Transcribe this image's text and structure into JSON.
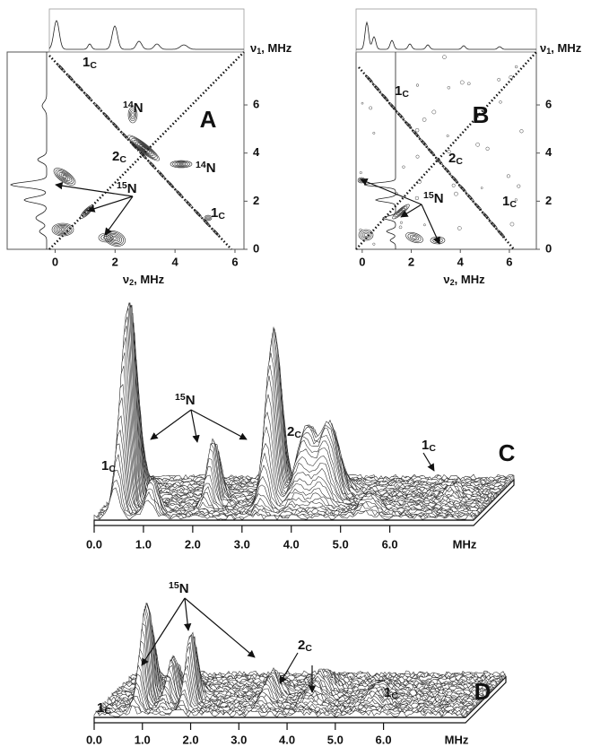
{
  "chart_data": [
    {
      "type": "contour",
      "panel": "A",
      "xlabel": {
        "symbol": "ν",
        "sub": "2",
        "unit": ", MHz"
      },
      "ylabel": {
        "symbol": "ν",
        "sub": "1",
        "unit": ", MHz"
      },
      "xlim": [
        -1.6,
        6.3
      ],
      "ylim": [
        0,
        8.2
      ],
      "xticks": [
        0,
        2,
        4,
        6
      ],
      "yticks": [
        0,
        2,
        4,
        6
      ],
      "annotations": [
        {
          "main": "1",
          "sub": "C"
        },
        {
          "sup": "14",
          "main": "N"
        },
        {
          "main": "2",
          "sub": "C"
        },
        {
          "sup": "14",
          "main": "N"
        },
        {
          "sup": "15",
          "main": "N"
        },
        {
          "main": "1",
          "sub": "C"
        }
      ]
    },
    {
      "type": "contour",
      "panel": "B",
      "xlabel": {
        "symbol": "ν",
        "sub": "2",
        "unit": ", MHz"
      },
      "ylabel": {
        "symbol": "ν",
        "sub": "1",
        "unit": ", MHz"
      },
      "xlim": [
        -0.25,
        7.1
      ],
      "ylim": [
        0,
        8.2
      ],
      "xticks": [
        0,
        2,
        4,
        6
      ],
      "yticks": [
        0,
        2,
        4,
        6
      ],
      "annotations": [
        {
          "main": "1",
          "sub": "C"
        },
        {
          "main": "2",
          "sub": "C"
        },
        {
          "sup": "15",
          "main": "N"
        },
        {
          "main": "1",
          "sub": "C"
        }
      ]
    },
    {
      "type": "surface",
      "panel": "C",
      "xlabel": "MHz",
      "xlim": [
        0,
        7.7
      ],
      "xticks": [
        {
          "value": 0,
          "label": "0.0"
        },
        {
          "value": 1,
          "label": "1.0"
        },
        {
          "value": 2,
          "label": "2.0"
        },
        {
          "value": 3,
          "label": "3.0"
        },
        {
          "value": 4,
          "label": "4.0"
        },
        {
          "value": 5,
          "label": "5.0"
        },
        {
          "value": 6,
          "label": "6.0"
        }
      ],
      "annotations": [
        {
          "sup": "15",
          "main": "N"
        },
        {
          "main": "2",
          "sub": "C"
        },
        {
          "main": "1",
          "sub": "C"
        },
        {
          "main": "1",
          "sub": "C"
        }
      ]
    },
    {
      "type": "surface",
      "panel": "D",
      "xlabel": "MHz",
      "xlim": [
        0,
        7.7
      ],
      "xticks": [
        {
          "value": 0,
          "label": "0.0"
        },
        {
          "value": 1,
          "label": "1.0"
        },
        {
          "value": 2,
          "label": "2.0"
        },
        {
          "value": 3,
          "label": "3.0"
        },
        {
          "value": 4,
          "label": "4.0"
        },
        {
          "value": 5,
          "label": "5.0"
        },
        {
          "value": 6,
          "label": "6.0"
        }
      ],
      "annotations": [
        {
          "sup": "15",
          "main": "N"
        },
        {
          "main": "2",
          "sub": "C"
        },
        {
          "main": "1",
          "sub": "C"
        },
        {
          "main": "1",
          "sub": "C"
        }
      ]
    }
  ]
}
